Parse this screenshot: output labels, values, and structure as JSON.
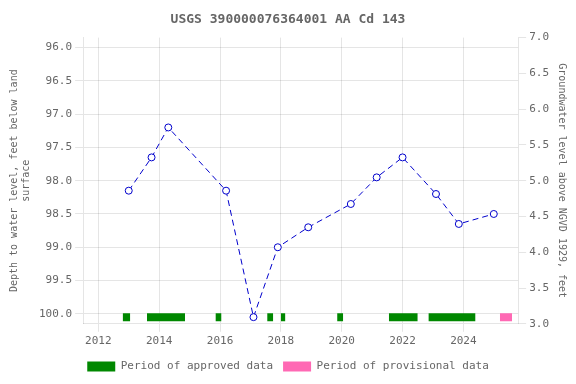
{
  "chart_data": {
    "type": "line",
    "title": "USGS 390000076364001 AA Cd 143",
    "ylabel": "Depth to water level, feet below land\nsurface",
    "y2label": "Groundwater level above NGVD 1929, feet",
    "xlim": [
      2011.5,
      2025.8
    ],
    "xticks": [
      2012,
      2014,
      2016,
      2018,
      2020,
      2022,
      2024
    ],
    "ylim": [
      100.15,
      95.85
    ],
    "yticks": [
      {
        "value": 96.0,
        "label": "96.0"
      },
      {
        "value": 96.5,
        "label": "96.5"
      },
      {
        "value": 97.0,
        "label": "97.0"
      },
      {
        "value": 97.5,
        "label": "97.5"
      },
      {
        "value": 98.0,
        "label": "98.0"
      },
      {
        "value": 98.5,
        "label": "98.5"
      },
      {
        "value": 99.0,
        "label": "99.0"
      },
      {
        "value": 99.5,
        "label": "99.5"
      },
      {
        "value": 100.0,
        "label": "100.0"
      }
    ],
    "y2lim": [
      3.0,
      7.0
    ],
    "y2ticks": [
      {
        "value": 3.0,
        "label": "3.0"
      },
      {
        "value": 3.5,
        "label": "3.5"
      },
      {
        "value": 4.0,
        "label": "4.0"
      },
      {
        "value": 4.5,
        "label": "4.5"
      },
      {
        "value": 5.0,
        "label": "5.0"
      },
      {
        "value": 5.5,
        "label": "5.5"
      },
      {
        "value": 6.0,
        "label": "6.0"
      },
      {
        "value": 6.5,
        "label": "6.5"
      },
      {
        "value": 7.0,
        "label": "7.0"
      }
    ],
    "grid": true,
    "legend": "bottom",
    "series": [
      {
        "type": "line",
        "color": "#0000cc",
        "marker": "circle",
        "line_style": "dashed",
        "x": [
          2013.0,
          2013.75,
          2014.3,
          2016.2,
          2017.1,
          2017.9,
          2018.9,
          2020.3,
          2021.15,
          2022.0,
          2023.1,
          2023.85,
          2025.0
        ],
        "values": [
          98.15,
          97.65,
          97.2,
          98.15,
          100.05,
          99.0,
          98.7,
          98.35,
          97.95,
          97.65,
          98.2,
          98.65,
          98.5
        ]
      },
      {
        "type": "band",
        "name": "Period of approved data",
        "color": "#008800",
        "band": [
          99.99,
          100.11
        ],
        "segments": [
          [
            2012.8,
            2013.05
          ],
          [
            2013.6,
            2014.85
          ],
          [
            2015.85,
            2016.05
          ],
          [
            2017.55,
            2017.75
          ],
          [
            2018.0,
            2018.15
          ],
          [
            2019.85,
            2020.05
          ],
          [
            2021.55,
            2022.5
          ],
          [
            2022.85,
            2024.4
          ]
        ]
      },
      {
        "type": "band",
        "name": "Period of provisional data",
        "color": "#ff69b4",
        "band": [
          99.99,
          100.11
        ],
        "segments": [
          [
            2025.2,
            2025.6
          ]
        ]
      }
    ]
  }
}
